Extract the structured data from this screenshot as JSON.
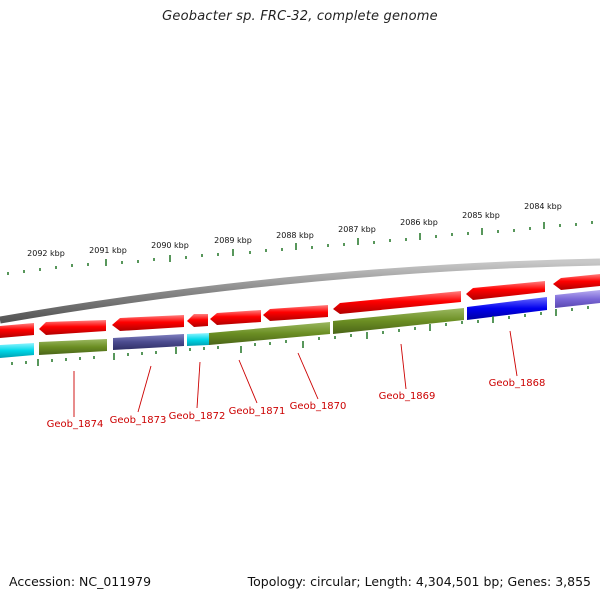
{
  "title": "Geobacter sp. FRC-32, complete genome",
  "footer": {
    "accession": "Accession: NC_011979",
    "summary": "Topology: circular; Length: 4,304,501 bp; Genes: 3,855"
  },
  "colors": {
    "backbone": "#8a8a8a",
    "forward_gene": "#ff0000",
    "reverse_gene": "#ff0000",
    "olive": "#6b8e23",
    "navy": "#4b4b8f",
    "cyan": "#00d8e8",
    "blue": "#0000ee",
    "lavender": "#7b68d8",
    "tick": "#2e7d32",
    "gene_label": "#cc0000"
  },
  "scale_labels": [
    "2092 kbp",
    "2091 kbp",
    "2090 kbp",
    "2089 kbp",
    "2088 kbp",
    "2087 kbp",
    "2086 kbp",
    "2085 kbp",
    "2084 kbp"
  ],
  "gene_labels": [
    "Geob_1874",
    "Geob_1873",
    "Geob_1872",
    "Geob_1871",
    "Geob_1870",
    "Geob_1869",
    "Geob_1868"
  ]
}
